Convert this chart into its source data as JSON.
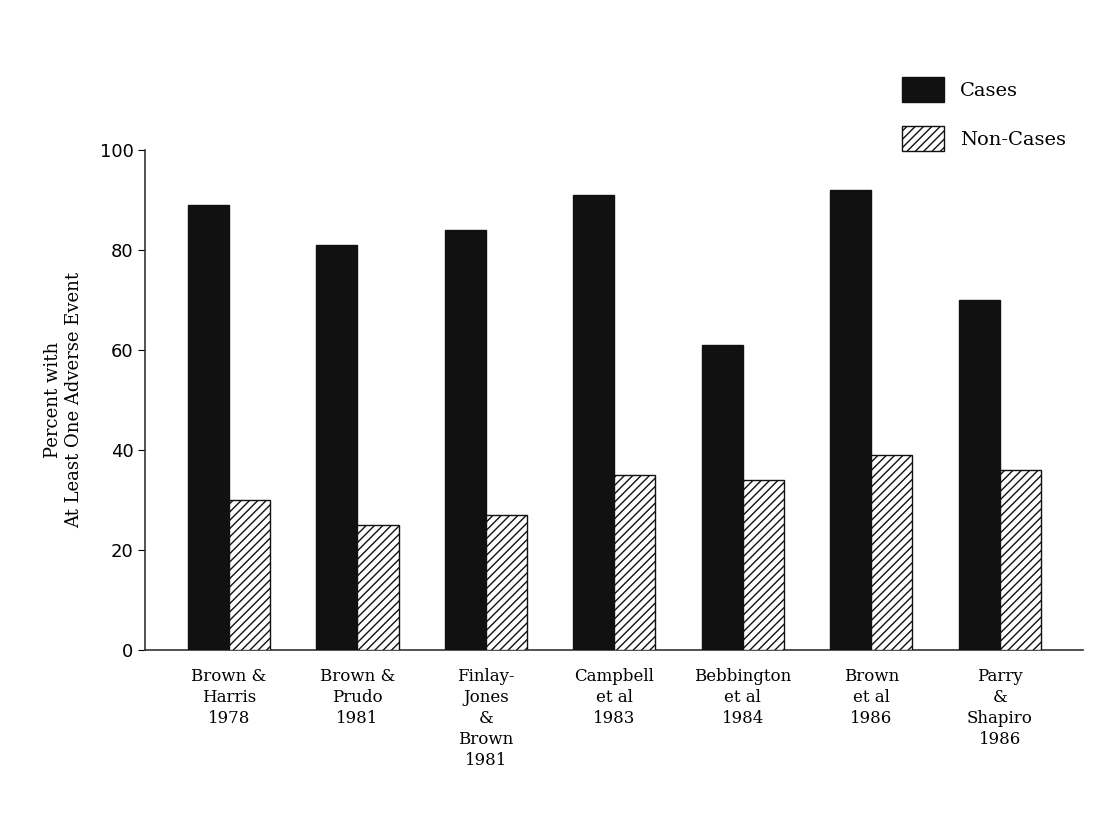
{
  "categories": [
    "Brown &\nHarris\n1978",
    "Brown &\nPrudo\n1981",
    "Finlay-\nJones\n&\nBrown\n1981",
    "Campbell\net al\n1983",
    "Bebbington\net al\n1984",
    "Brown\net al\n1986",
    "Parry\n&\nShapiro\n1986"
  ],
  "cases": [
    89,
    81,
    84,
    91,
    61,
    92,
    70
  ],
  "non_cases": [
    30,
    25,
    27,
    35,
    34,
    39,
    36
  ],
  "cases_color": "#111111",
  "non_cases_color": "#ffffff",
  "non_cases_hatch": "////",
  "ylabel": "Percent with\nAt Least One Adverse Event",
  "ylim": [
    0,
    100
  ],
  "yticks": [
    0,
    20,
    40,
    60,
    80,
    100
  ],
  "legend_cases_label": "Cases",
  "legend_non_cases_label": "Non-Cases",
  "bar_width": 0.32,
  "background_color": "#ffffff",
  "figure_background": "#ffffff"
}
